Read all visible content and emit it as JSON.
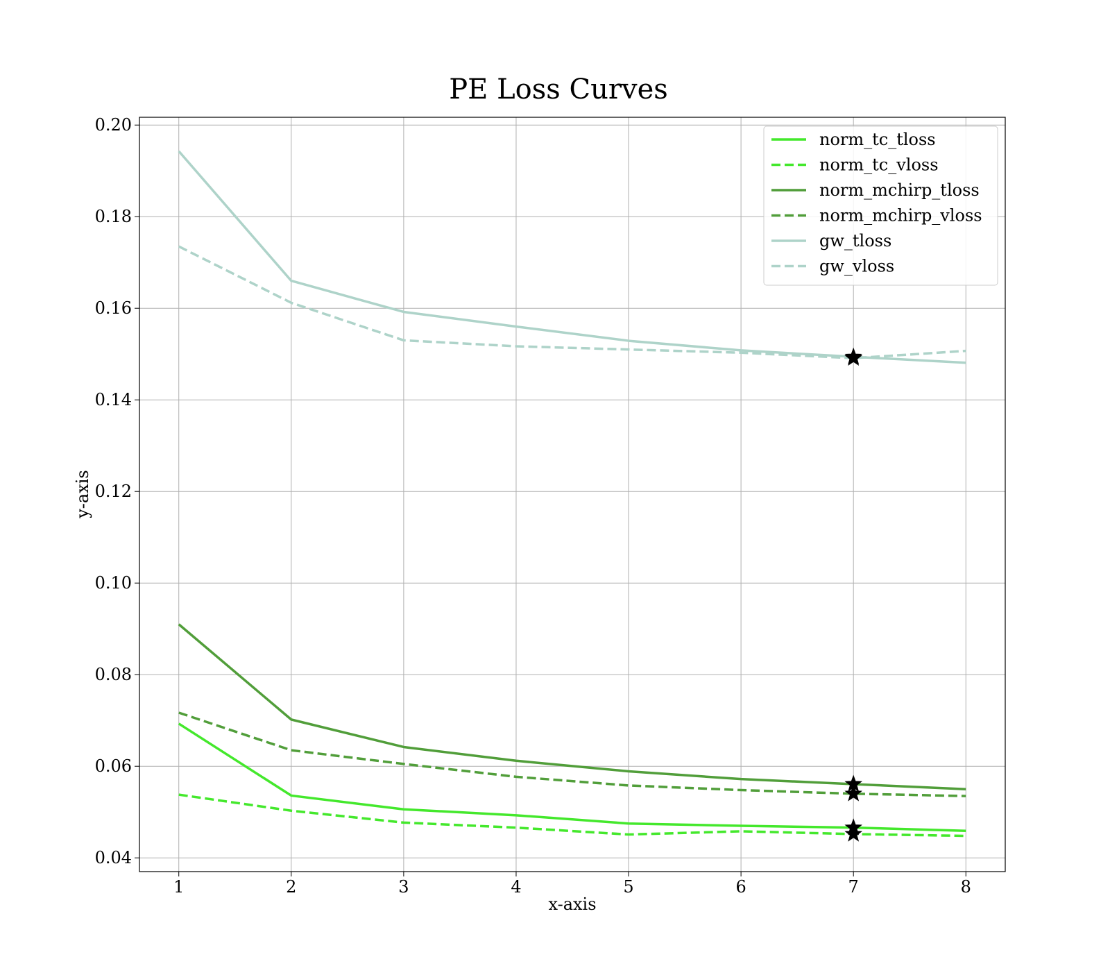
{
  "chart_data": {
    "type": "line",
    "title": "PE Loss Curves",
    "xlabel": "x-axis",
    "ylabel": "y-axis",
    "x": [
      1,
      2,
      3,
      4,
      5,
      6,
      7,
      8
    ],
    "xlim": [
      0.65,
      8.35
    ],
    "ylim": [
      0.037,
      0.2017
    ],
    "xticks": [
      1,
      2,
      3,
      4,
      5,
      6,
      7,
      8
    ],
    "yticks": [
      0.04,
      0.06,
      0.08,
      0.1,
      0.12,
      0.14,
      0.16,
      0.18,
      0.2
    ],
    "ytick_labels": [
      "0.04",
      "0.06",
      "0.08",
      "0.10",
      "0.12",
      "0.14",
      "0.16",
      "0.18",
      "0.20"
    ],
    "grid": true,
    "legend_position": "top-right",
    "series": [
      {
        "name": "norm_tc_tloss",
        "color": "#44e82c",
        "dashed": false,
        "values": [
          0.0693,
          0.0536,
          0.0506,
          0.0493,
          0.0475,
          0.047,
          0.0466,
          0.0459
        ]
      },
      {
        "name": "norm_tc_vloss",
        "color": "#44e82c",
        "dashed": true,
        "values": [
          0.0538,
          0.0503,
          0.0477,
          0.0466,
          0.0451,
          0.0458,
          0.0452,
          0.0448
        ]
      },
      {
        "name": "norm_mchirp_tloss",
        "color": "#519e3a",
        "dashed": false,
        "values": [
          0.091,
          0.0702,
          0.0642,
          0.0612,
          0.0589,
          0.0572,
          0.0561,
          0.055
        ]
      },
      {
        "name": "norm_mchirp_vloss",
        "color": "#519e3a",
        "dashed": true,
        "values": [
          0.0717,
          0.0635,
          0.0605,
          0.0577,
          0.0558,
          0.0548,
          0.054,
          0.0535
        ]
      },
      {
        "name": "gw_tloss",
        "color": "#aed3c9",
        "dashed": false,
        "values": [
          0.1943,
          0.166,
          0.1592,
          0.156,
          0.1529,
          0.1508,
          0.1494,
          0.1481
        ]
      },
      {
        "name": "gw_vloss",
        "color": "#aed3c9",
        "dashed": true,
        "values": [
          0.1735,
          0.1612,
          0.153,
          0.1517,
          0.151,
          0.1503,
          0.1491,
          0.1507
        ]
      }
    ],
    "markers": [
      {
        "series": "norm_tc_tloss",
        "x": 7,
        "y": 0.0466,
        "shape": "star"
      },
      {
        "series": "norm_tc_vloss",
        "x": 7,
        "y": 0.0452,
        "shape": "star"
      },
      {
        "series": "norm_mchirp_tloss",
        "x": 7,
        "y": 0.0561,
        "shape": "star"
      },
      {
        "series": "norm_mchirp_vloss",
        "x": 7,
        "y": 0.054,
        "shape": "star"
      },
      {
        "series": "gw_tloss",
        "x": 7,
        "y": 0.1494,
        "shape": "star"
      },
      {
        "series": "gw_vloss",
        "x": 7,
        "y": 0.1491,
        "shape": "star"
      }
    ]
  }
}
